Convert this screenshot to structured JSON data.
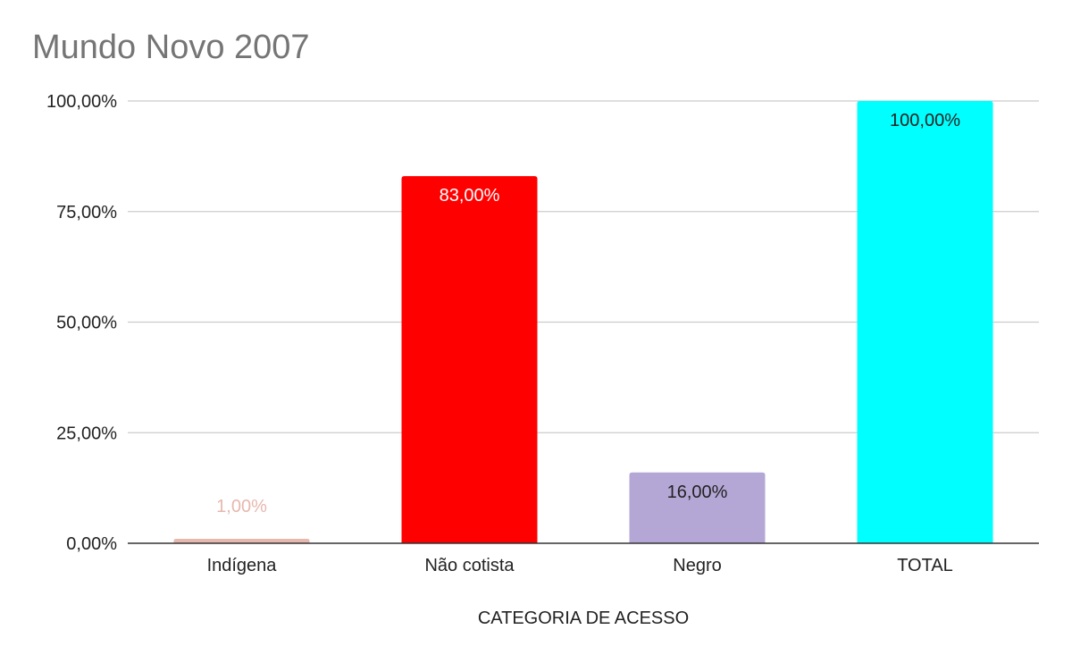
{
  "chart_data": {
    "type": "bar",
    "title": "Mundo Novo 2007",
    "xlabel": "CATEGORIA DE ACESSO",
    "ylabel": "",
    "categories": [
      "Indígena",
      "Não cotista",
      "Negro",
      "TOTAL"
    ],
    "values": [
      1,
      83,
      16,
      100
    ],
    "data_labels": [
      "1,00%",
      "83,00%",
      "16,00%",
      "100,00%"
    ],
    "bar_colors": [
      "#e6b8af",
      "#ff0000",
      "#b4a7d6",
      "#00ffff"
    ],
    "label_colors": [
      "#e6b8af",
      "#ffffff",
      "#222222",
      "#222222"
    ],
    "ylim": [
      0,
      100
    ],
    "y_ticks": [
      0,
      25,
      50,
      75,
      100
    ],
    "y_tick_labels": [
      "0,00%",
      "25,00%",
      "50,00%",
      "75,00%",
      "100,00%"
    ],
    "grid": true,
    "legend": "none"
  }
}
